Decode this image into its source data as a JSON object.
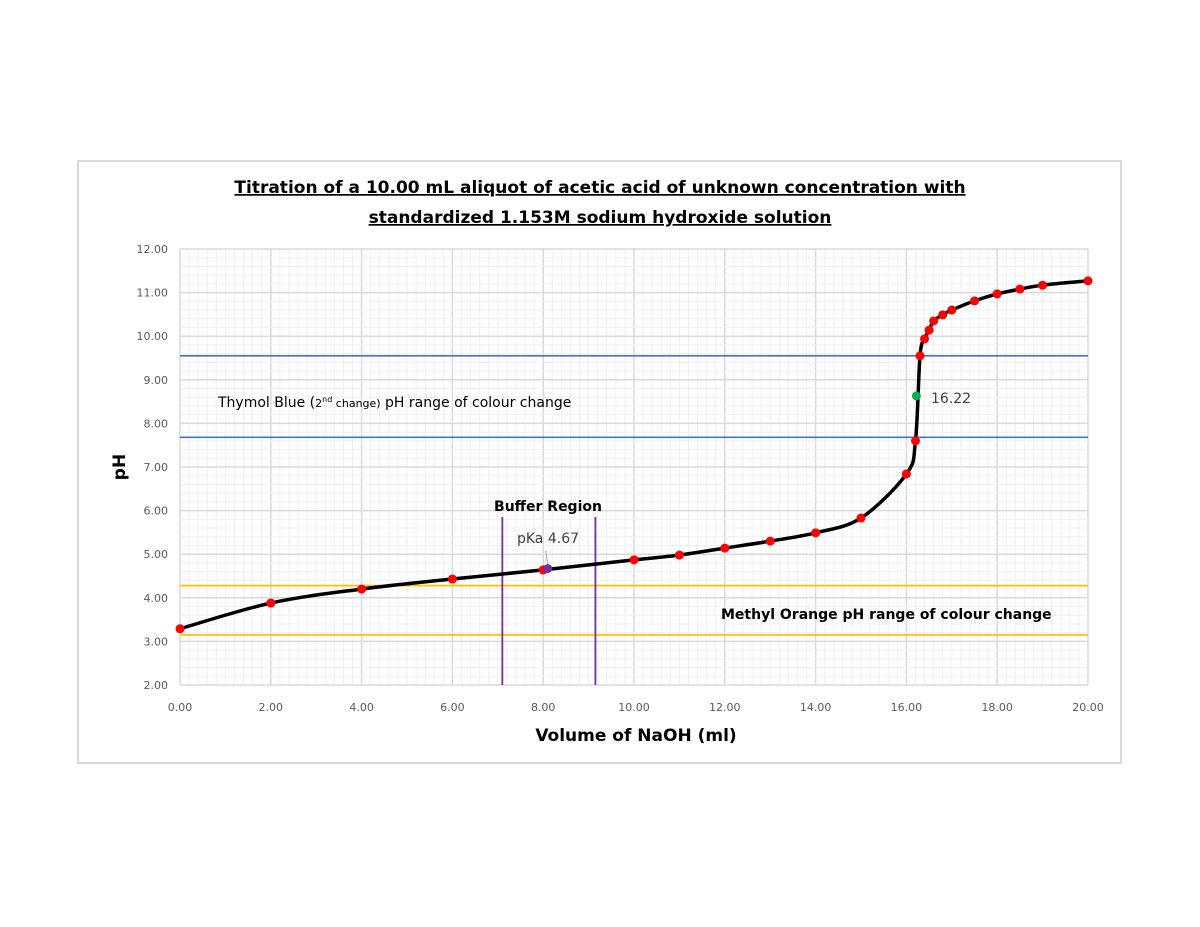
{
  "chart_data": {
    "type": "line",
    "title_line1": "Titration of a 10.00 mL aliquot of acetic acid of unknown concentration with",
    "title_line2": "standardized 1.153M sodium hydroxide solution",
    "xlabel": "Volume of NaOH (ml)",
    "ylabel": "pH",
    "xlim": [
      0,
      20
    ],
    "ylim": [
      2,
      12
    ],
    "x_ticks": [
      "0.00",
      "2.00",
      "4.00",
      "6.00",
      "8.00",
      "10.00",
      "12.00",
      "14.00",
      "16.00",
      "18.00",
      "20.00"
    ],
    "y_ticks": [
      "2.00",
      "3.00",
      "4.00",
      "5.00",
      "6.00",
      "7.00",
      "8.00",
      "9.00",
      "10.00",
      "11.00",
      "12.00"
    ],
    "grid": true,
    "series": [
      {
        "x": [
          0,
          2,
          4,
          6,
          8,
          10,
          11,
          12,
          13,
          14,
          15,
          16,
          16.2,
          16.3,
          16.4,
          16.5,
          16.6,
          16.8,
          17,
          17.5,
          18,
          18.5,
          19,
          20
        ],
        "y": [
          3.29,
          3.88,
          4.2,
          4.43,
          4.64,
          4.87,
          4.98,
          5.14,
          5.3,
          5.49,
          5.83,
          6.84,
          7.6,
          9.55,
          9.94,
          10.14,
          10.35,
          10.49,
          10.6,
          10.81,
          10.97,
          11.08,
          11.17,
          11.27
        ],
        "line_color": "#000000",
        "marker_color": "#ff0000"
      }
    ],
    "special_points": [
      {
        "x": 16.22,
        "y": 8.63,
        "label": "16.22",
        "color": "#00b050"
      },
      {
        "x": 8.1,
        "y": 4.67,
        "label": "pKa 4.67",
        "color": "#7030a0"
      }
    ],
    "reference_lines": {
      "thymol_blue": {
        "values": [
          7.68,
          9.55
        ],
        "color": "#4472c4",
        "label_pre": "Thymol Blue (",
        "label_sup_num": "2",
        "label_sup": "nd",
        "label_mid": " change)",
        "label_post": " pH range of colour change"
      },
      "methyl_orange": {
        "values": [
          3.15,
          4.28
        ],
        "color": "#ffc000",
        "label": "Methyl Orange pH range of colour change"
      },
      "buffer_region": {
        "values": [
          7.1,
          9.15
        ],
        "color": "#7030a0",
        "label": "Buffer Region"
      }
    }
  }
}
